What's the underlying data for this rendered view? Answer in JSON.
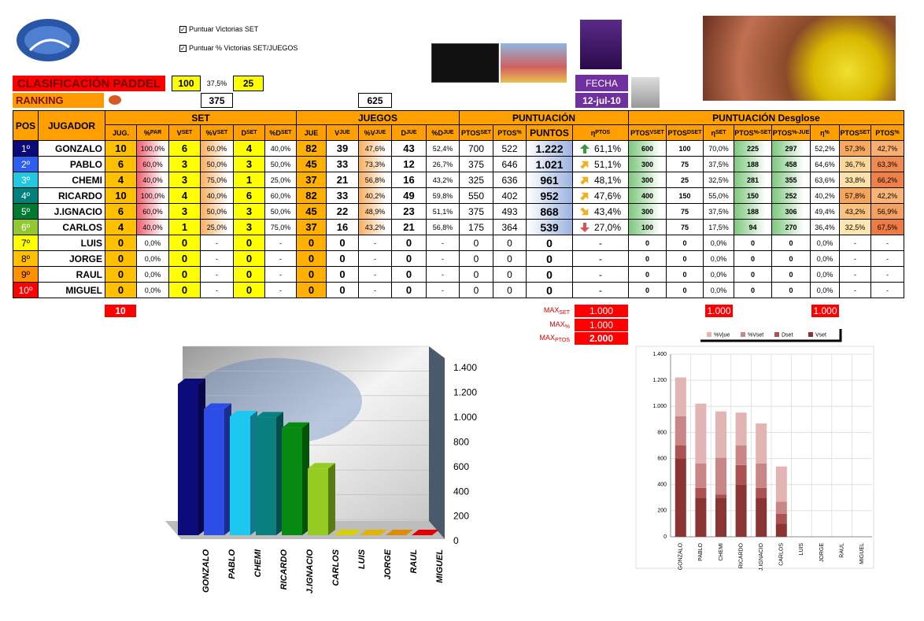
{
  "header": {
    "options": [
      "Puntuar Victorias SET",
      "Puntuar % Victorias SET/JUEGOS"
    ],
    "title": "CLASIFICACIÓN PADDEL",
    "title_values": [
      "100",
      "37,5%",
      "25"
    ],
    "ranking": "RANKING",
    "ranking_values": [
      "375",
      "625"
    ],
    "date_label": "FECHA",
    "date": "12-jul-10"
  },
  "table": {
    "groups": [
      "POS",
      "JUGADOR",
      "SET",
      "JUEGOS",
      "PUNTUACIÓN",
      "PUNTUACIÓN Desglose"
    ],
    "columns": [
      "JUG.",
      {
        "text": "%",
        "sub": "PAR"
      },
      {
        "text": "V",
        "sub": "SET"
      },
      {
        "text": "%V",
        "sub": "SET"
      },
      {
        "text": "D",
        "sub": "SET"
      },
      {
        "text": "%D",
        "sub": "SET"
      },
      "JUE",
      {
        "text": "V",
        "sub": "JUE"
      },
      {
        "text": "%V",
        "sub": "JUE"
      },
      {
        "text": "D",
        "sub": "JUE"
      },
      {
        "text": "%D",
        "sub": "JUE"
      },
      {
        "text": "PTOS",
        "sub": "SET"
      },
      {
        "text": "PTOS",
        "sub": "%"
      },
      "PUNTOS",
      {
        "text": "η",
        "sub": "PTOS"
      },
      {
        "text": "PTOS",
        "sub": "VSET"
      },
      {
        "text": "PTOS",
        "sub": "DSET"
      },
      {
        "text": "η",
        "sub": "SET"
      },
      {
        "text": "PTOS",
        "sub": "%-SET"
      },
      {
        "text": "PTOS",
        "sub": "%-JUE"
      },
      {
        "text": "η",
        "sub": "%"
      },
      {
        "text": "PTOS",
        "sub": "SET"
      },
      {
        "text": "PTOS",
        "sub": "%"
      }
    ],
    "rows": [
      [
        "1º",
        "GONZALO",
        "10",
        "100,0%",
        "6",
        "60,0%",
        "4",
        "40,0%",
        "82",
        "39",
        "47,6%",
        "43",
        "52,4%",
        "700",
        "522",
        "1.222",
        "61,1%",
        "600",
        "100",
        "70,0%",
        "225",
        "297",
        "52,2%",
        "57,3%",
        "42,7%"
      ],
      [
        "2º",
        "PABLO",
        "6",
        "60,0%",
        "3",
        "50,0%",
        "3",
        "50,0%",
        "45",
        "33",
        "73,3%",
        "12",
        "26,7%",
        "375",
        "646",
        "1.021",
        "51,1%",
        "300",
        "75",
        "37,5%",
        "188",
        "458",
        "64,6%",
        "36,7%",
        "63,3%"
      ],
      [
        "3º",
        "CHEMI",
        "4",
        "40,0%",
        "3",
        "75,0%",
        "1",
        "25,0%",
        "37",
        "21",
        "56,8%",
        "16",
        "43,2%",
        "325",
        "636",
        "961",
        "48,1%",
        "300",
        "25",
        "32,5%",
        "281",
        "355",
        "63,6%",
        "33,8%",
        "66,2%"
      ],
      [
        "4º",
        "RICARDO",
        "10",
        "100,0%",
        "4",
        "40,0%",
        "6",
        "60,0%",
        "82",
        "33",
        "40,2%",
        "49",
        "59,8%",
        "550",
        "402",
        "952",
        "47,6%",
        "400",
        "150",
        "55,0%",
        "150",
        "252",
        "40,2%",
        "57,8%",
        "42,2%"
      ],
      [
        "5º",
        "J.IGNACIO",
        "6",
        "60,0%",
        "3",
        "50,0%",
        "3",
        "50,0%",
        "45",
        "22",
        "48,9%",
        "23",
        "51,1%",
        "375",
        "493",
        "868",
        "43,4%",
        "300",
        "75",
        "37,5%",
        "188",
        "306",
        "49,4%",
        "43,2%",
        "56,9%"
      ],
      [
        "6º",
        "CARLOS",
        "4",
        "40,0%",
        "1",
        "25,0%",
        "3",
        "75,0%",
        "37",
        "16",
        "43,2%",
        "21",
        "56,8%",
        "175",
        "364",
        "539",
        "27,0%",
        "100",
        "75",
        "17,5%",
        "94",
        "270",
        "36,4%",
        "32,5%",
        "67,5%"
      ],
      [
        "7º",
        "LUIS",
        "0",
        "0,0%",
        "0",
        "-",
        "0",
        "-",
        "0",
        "0",
        "-",
        "0",
        "-",
        "0",
        "0",
        "0",
        "-",
        "0",
        "0",
        "0,0%",
        "0",
        "0",
        "0,0%",
        "-",
        "-"
      ],
      [
        "8º",
        "JORGE",
        "0",
        "0,0%",
        "0",
        "-",
        "0",
        "-",
        "0",
        "0",
        "-",
        "0",
        "-",
        "0",
        "0",
        "0",
        "-",
        "0",
        "0",
        "0,0%",
        "0",
        "0",
        "0,0%",
        "-",
        "-"
      ],
      [
        "9º",
        "RAUL",
        "0",
        "0,0%",
        "0",
        "-",
        "0",
        "-",
        "0",
        "0",
        "-",
        "0",
        "-",
        "0",
        "0",
        "0",
        "-",
        "0",
        "0",
        "0,0%",
        "0",
        "0",
        "0,0%",
        "-",
        "-"
      ],
      [
        "10º",
        "MIGUEL",
        "0",
        "0,0%",
        "0",
        "-",
        "0",
        "-",
        "0",
        "0",
        "-",
        "0",
        "-",
        "0",
        "0",
        "0",
        "-",
        "0",
        "0",
        "0,0%",
        "0",
        "0",
        "0,0%",
        "-",
        "-"
      ]
    ]
  },
  "footer": {
    "players": "10",
    "max": [
      {
        "text": "MAX",
        "sub": "SET",
        "value": "1.000"
      },
      {
        "text": "MAX",
        "sub": "%",
        "value": "1.000"
      },
      {
        "text": "MAX",
        "sub": "PTOS",
        "value": "2.000"
      }
    ],
    "eta_max": [
      "1.000",
      "1.000"
    ]
  },
  "chart_data": [
    {
      "type": "bar3d",
      "categories": [
        "GONZALO",
        "PABLO",
        "CHEMI",
        "RICARDO",
        "J.IGNACIO",
        "CARLOS",
        "LUIS",
        "JORGE",
        "RAUL",
        "MIGUEL"
      ],
      "values": [
        1222,
        1021,
        961,
        952,
        868,
        539,
        0,
        0,
        0,
        0
      ],
      "colors": [
        "#0b0b7a",
        "#2c4ee6",
        "#1cc8f0",
        "#0a7f80",
        "#078a12",
        "#94cc22",
        "#d8d000",
        "#e0b400",
        "#e08c00",
        "#e00000"
      ],
      "ylim": [
        0,
        1400
      ],
      "yticks": [
        0,
        200,
        400,
        600,
        800,
        {
          "value": 1000,
          "label": "1.000"
        },
        {
          "value": 1200,
          "label": "1.200"
        },
        {
          "value": 1400,
          "label": "1.400"
        }
      ],
      "grid": true
    },
    {
      "type": "stacked",
      "categories": [
        "GONZALO",
        "PABLO",
        "CHEMI",
        "RICARDO",
        "J.IGNACIO",
        "CARLOS",
        "LUIS",
        "JORGE",
        "RAUL",
        "MIGUEL"
      ],
      "series": [
        {
          "name": "%Vjue",
          "color": "#e3b4b4",
          "values": [
            297,
            458,
            355,
            252,
            306,
            270,
            0,
            0,
            0,
            0
          ]
        },
        {
          "name": "%Vset",
          "color": "#c98686",
          "values": [
            225,
            188,
            281,
            150,
            188,
            94,
            0,
            0,
            0,
            0
          ]
        },
        {
          "name": "Dset",
          "color": "#ad5252",
          "values": [
            100,
            75,
            25,
            150,
            75,
            75,
            0,
            0,
            0,
            0
          ]
        },
        {
          "name": "Vset",
          "color": "#8a3434",
          "values": [
            600,
            300,
            300,
            400,
            300,
            100,
            0,
            0,
            0,
            0
          ]
        }
      ],
      "ylim": [
        0,
        1400
      ],
      "yticks": [
        0,
        200,
        400,
        600,
        800,
        {
          "value": 1000,
          "label": "1.000"
        },
        {
          "value": 1200,
          "label": "1.200"
        },
        {
          "value": 1400,
          "label": "1.400"
        }
      ],
      "grid": true,
      "legend": "top"
    }
  ]
}
